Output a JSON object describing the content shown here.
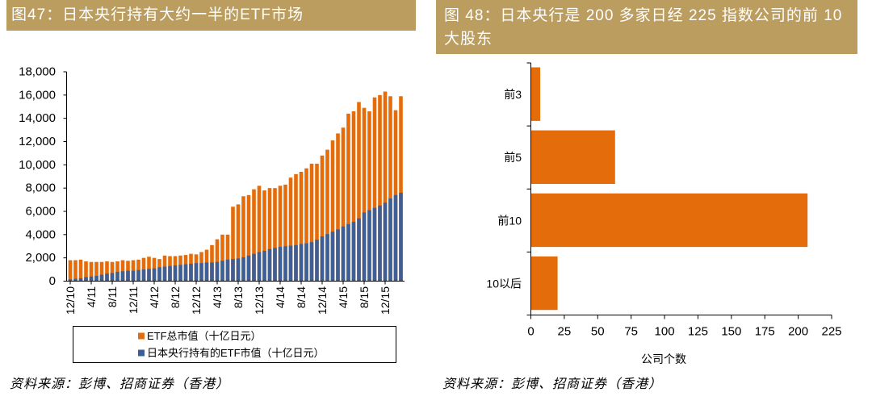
{
  "colors": {
    "header_bg": "#BC9D60",
    "header_text": "#FFFFFF"
  },
  "chart_data": [
    {
      "type": "bar",
      "title": "图47：日本央行持有大约一半的ETF市场",
      "ylim": [
        0,
        18000
      ],
      "ytick_labels": [
        "0",
        "2,000",
        "4,000",
        "6,000",
        "8,000",
        "10,000",
        "12,000",
        "14,000",
        "16,000",
        "18,000"
      ],
      "x_tick_labels": [
        "12/10",
        "4/11",
        "8/11",
        "12/11",
        "4/12",
        "8/12",
        "12/12",
        "4/13",
        "8/13",
        "12/13",
        "4/14",
        "8/14",
        "12/14",
        "4/15",
        "8/15",
        "12/15"
      ],
      "tick_every": 4,
      "legend_position": "bottom",
      "series": [
        {
          "name": "ETF总市值（十亿日元）",
          "color": "#E46C0A",
          "values": [
            1800,
            1800,
            1850,
            1700,
            1650,
            1650,
            1650,
            1700,
            1650,
            1700,
            1800,
            1750,
            1800,
            1850,
            2000,
            2100,
            2000,
            1900,
            2200,
            2150,
            2150,
            2200,
            2250,
            2350,
            2300,
            2500,
            2700,
            3100,
            3600,
            4000,
            4000,
            6400,
            6600,
            7300,
            7400,
            7900,
            8200,
            7800,
            8000,
            8000,
            8200,
            8300,
            8900,
            9200,
            9400,
            9700,
            10100,
            10100,
            10800,
            11300,
            12100,
            12700,
            13200,
            14400,
            14600,
            15400,
            14900,
            14600,
            15800,
            16000,
            16300,
            15900,
            14700,
            15900
          ]
        },
        {
          "name": "日本央行持有的ETF市值（十亿日元）",
          "color": "#3E5F95",
          "values": [
            150,
            200,
            250,
            350,
            400,
            450,
            550,
            650,
            700,
            800,
            850,
            900,
            900,
            950,
            1000,
            1050,
            1100,
            1200,
            1250,
            1300,
            1350,
            1400,
            1450,
            1500,
            1550,
            1550,
            1600,
            1600,
            1650,
            1750,
            1850,
            1900,
            1950,
            2050,
            2200,
            2350,
            2500,
            2600,
            2750,
            2850,
            2950,
            3000,
            3050,
            3100,
            3200,
            3250,
            3350,
            3550,
            3850,
            4050,
            4250,
            4450,
            4700,
            4900,
            5100,
            5400,
            5900,
            6100,
            6300,
            6500,
            6750,
            7100,
            7400,
            7600
          ]
        }
      ],
      "source": "资料来源：彭博、招商证券（香港）"
    },
    {
      "type": "bar",
      "title_lines": [
        "图 48：日本央行是 200 多家日经 225 指数公司的前 10",
        "大股东"
      ],
      "categories": [
        "前3",
        "前5",
        "前10",
        "10以后"
      ],
      "values": [
        7,
        63,
        207,
        20
      ],
      "color": "#E46C0A",
      "xlim": [
        0,
        225
      ],
      "xtick_labels": [
        "0",
        "25",
        "50",
        "75",
        "100",
        "125",
        "150",
        "175",
        "200",
        "225"
      ],
      "xlabel": "公司个数",
      "source": "资料来源：彭博、招商证券（香港）"
    }
  ]
}
